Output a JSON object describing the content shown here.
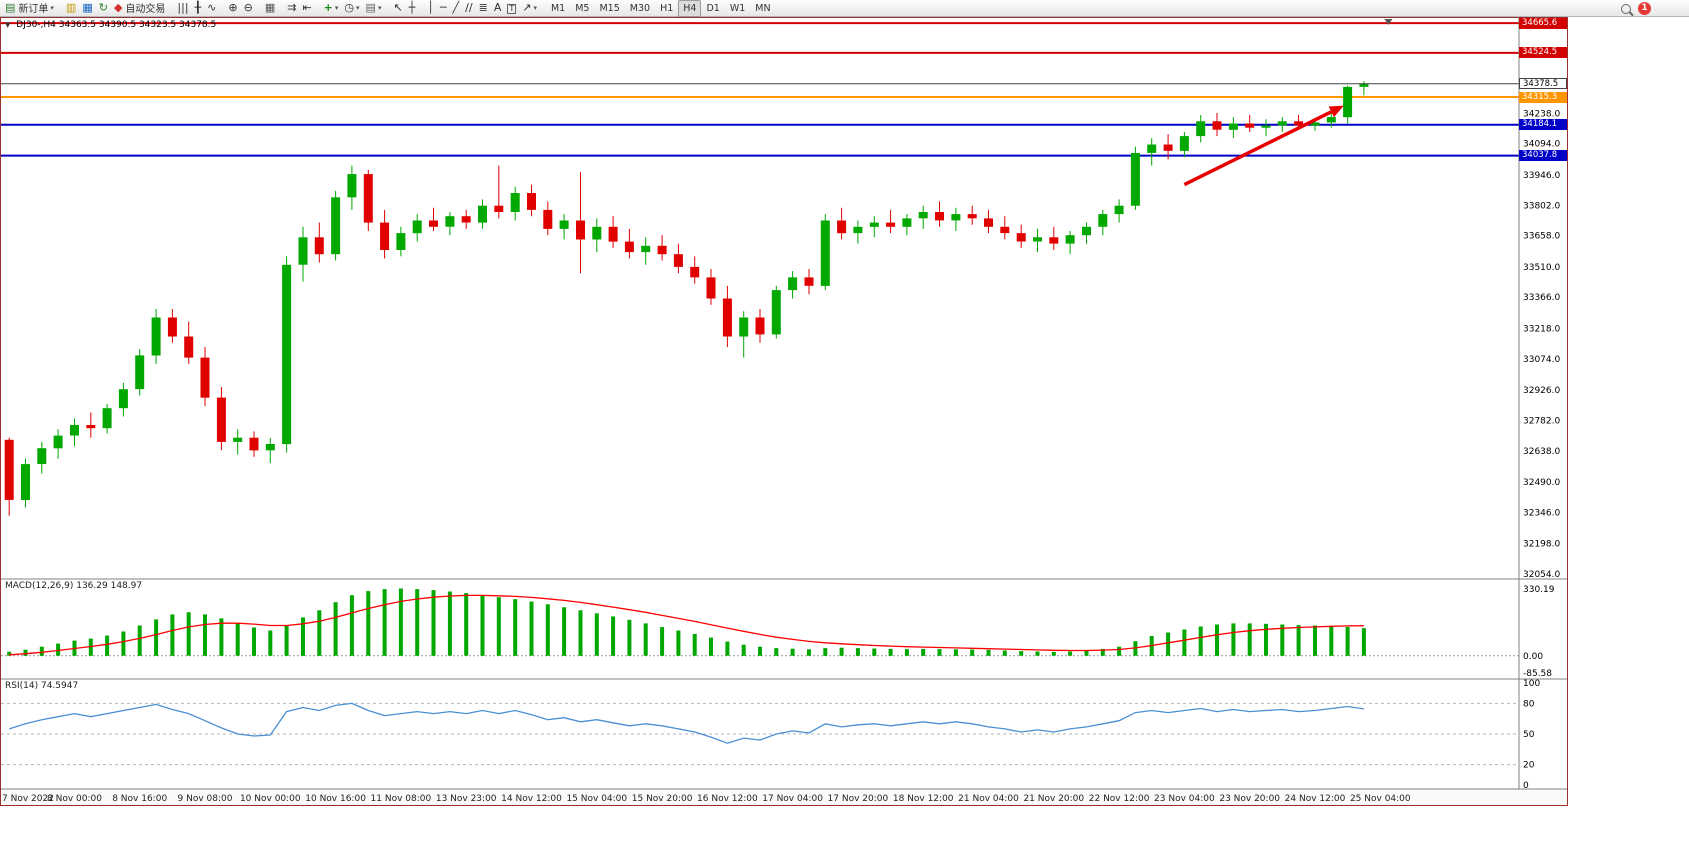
{
  "window": {
    "badge_count": "1"
  },
  "toolbar": {
    "items": [
      {
        "kind": "labeled",
        "name": "new-order-button",
        "icon_name": "new-order-icon",
        "icon": "▤",
        "icon_color": "#2e7d32",
        "label": "新订单",
        "dropdown": true
      },
      {
        "kind": "sep"
      },
      {
        "name": "market-watch-icon",
        "kind": "icon",
        "icon": "▥",
        "icon_color": "#c59a00"
      },
      {
        "name": "data-window-icon",
        "kind": "icon",
        "icon": "▦",
        "icon_color": "#1565c0"
      },
      {
        "name": "refresh-icon",
        "kind": "icon",
        "icon": "↻",
        "icon_color": "#2e7d32"
      },
      {
        "kind": "labeled",
        "name": "autotrading-button",
        "icon_name": "autotrading-icon",
        "icon": "◆",
        "icon_color": "#d32f2f",
        "label": "自动交易"
      },
      {
        "kind": "sep"
      },
      {
        "name": "bar-chart-icon",
        "kind": "icon",
        "icon": "|||",
        "icon_color": "#333"
      },
      {
        "name": "candlestick-chart-icon",
        "kind": "icon",
        "icon": "╂",
        "icon_color": "#333"
      },
      {
        "name": "line-chart-icon",
        "kind": "icon",
        "icon": "∿",
        "icon_color": "#333"
      },
      {
        "kind": "sep"
      },
      {
        "name": "zoom-in-icon",
        "kind": "icon",
        "icon": "⊕",
        "icon_color": "#333"
      },
      {
        "name": "zoom-out-icon",
        "kind": "icon",
        "icon": "⊖",
        "icon_color": "#333"
      },
      {
        "kind": "sep"
      },
      {
        "name": "tile-windows-icon",
        "kind": "icon",
        "icon": "▦",
        "icon_color": "#555"
      },
      {
        "kind": "sep"
      },
      {
        "name": "auto-scroll-icon",
        "kind": "icon",
        "icon": "⇉",
        "icon_color": "#333"
      },
      {
        "name": "chart-shift-icon",
        "kind": "icon",
        "icon": "⇤",
        "icon_color": "#333"
      },
      {
        "kind": "sep"
      },
      {
        "name": "indicators-icon",
        "kind": "icon",
        "icon": "+",
        "icon_color": "#1b8a1b",
        "bold": true,
        "dropdown": true
      },
      {
        "name": "periods-icon",
        "kind": "icon",
        "icon": "◷",
        "icon_color": "#333",
        "dropdown": true
      },
      {
        "name": "templates-icon",
        "kind": "icon",
        "icon": "▤",
        "icon_color": "#666",
        "dropdown": true
      },
      {
        "kind": "sep"
      },
      {
        "name": "cursor-icon",
        "kind": "icon",
        "icon": "↖",
        "icon_color": "#333"
      },
      {
        "name": "crosshair-icon",
        "kind": "icon",
        "icon": "┼",
        "icon_color": "#333"
      },
      {
        "kind": "sep"
      },
      {
        "name": "vertical-line-icon",
        "kind": "icon",
        "icon": "│",
        "icon_color": "#333"
      },
      {
        "name": "horizontal-line-icon",
        "kind": "icon",
        "icon": "─",
        "icon_color": "#333"
      },
      {
        "name": "trendline-icon",
        "kind": "icon",
        "icon": "╱",
        "icon_color": "#333"
      },
      {
        "name": "channel-icon",
        "kind": "icon",
        "icon": "∕∕",
        "icon_color": "#333"
      },
      {
        "name": "fibonacci-icon",
        "kind": "icon",
        "icon": "≣",
        "icon_color": "#333"
      },
      {
        "name": "text-icon",
        "kind": "icon",
        "icon": "A",
        "icon_color": "#333"
      },
      {
        "name": "text-label-icon",
        "kind": "icon",
        "icon": "T",
        "icon_color": "#333",
        "boxed": true
      },
      {
        "name": "arrows-icon",
        "kind": "icon",
        "icon": "↗",
        "icon_color": "#333",
        "dropdown": true
      },
      {
        "kind": "sep"
      }
    ],
    "timeframes": [
      "M1",
      "M5",
      "M15",
      "M30",
      "H1",
      "H4",
      "D1",
      "W1",
      "MN"
    ],
    "active_timeframe": "H4"
  },
  "chart": {
    "title_symbol": "DJ30-,H4",
    "title_ohlc": "34363.5 34390.5 34323.5 34378.5"
  },
  "theme": {
    "bull": "#00A800",
    "bear": "#E00000",
    "macd_hist": "#00A800",
    "macd_signal": "#FF0000",
    "rsi_line": "#4a8fd4",
    "hline_red": "#D20000",
    "hline_orange": "#FF9500",
    "hline_blue": "#0000C8",
    "bid_line": "#444444",
    "arrow": "#E80000"
  },
  "chart_data": {
    "type": "candlestick",
    "symbol": "DJ30-",
    "period": "H4",
    "current": {
      "open": 34363.5,
      "high": 34390.5,
      "low": 34323.5,
      "close": 34378.5
    },
    "y_range": {
      "top": 34690,
      "bottom": 32030
    },
    "price_axis": [
      "34238.0",
      "34094.0",
      "33946.0",
      "33802.0",
      "33658.0",
      "33510.0",
      "33366.0",
      "33218.0",
      "33074.0",
      "32926.0",
      "32782.0",
      "32638.0",
      "32490.0",
      "32346.0",
      "32198.0",
      "32054.0"
    ],
    "time_labels": [
      "7 Nov 2022",
      "8 Nov 00:00",
      "8 Nov 16:00",
      "9 Nov 08:00",
      "10 Nov 00:00",
      "10 Nov 16:00",
      "11 Nov 08:00",
      "13 Nov 23:00",
      "14 Nov 12:00",
      "15 Nov 04:00",
      "15 Nov 20:00",
      "16 Nov 12:00",
      "17 Nov 04:00",
      "17 Nov 20:00",
      "18 Nov 12:00",
      "21 Nov 04:00",
      "21 Nov 20:00",
      "22 Nov 12:00",
      "23 Nov 04:00",
      "23 Nov 20:00",
      "24 Nov 12:00",
      "25 Nov 04:00"
    ],
    "label_every_n_candles": 4,
    "total_slots": 93,
    "hlines": [
      {
        "value": 34665.6,
        "label": "34665.6",
        "color_key": "hline_red",
        "width": 2
      },
      {
        "value": 34524.5,
        "label": "34524.5",
        "color_key": "hline_red",
        "width": 2
      },
      {
        "value": 34315.3,
        "label": "34315.3",
        "color_key": "hline_orange",
        "width": 2
      },
      {
        "value": 34184.1,
        "label": "34184.1",
        "color_key": "hline_blue",
        "width": 2
      },
      {
        "value": 34037.8,
        "label": "34037.8",
        "color_key": "hline_blue",
        "width": 2
      }
    ],
    "bid_line": {
      "value": 34378.5,
      "label": "34378.5"
    },
    "annotation_arrow": {
      "x1_slot": 72,
      "y1_price": 33900,
      "x2_slot": 81,
      "y2_price": 34245
    },
    "candles": [
      [
        32690,
        32700,
        32330,
        32405
      ],
      [
        32405,
        32600,
        32370,
        32575
      ],
      [
        32575,
        32680,
        32530,
        32650
      ],
      [
        32650,
        32740,
        32600,
        32710
      ],
      [
        32710,
        32790,
        32660,
        32760
      ],
      [
        32760,
        32820,
        32700,
        32745
      ],
      [
        32745,
        32860,
        32720,
        32840
      ],
      [
        32840,
        32960,
        32800,
        32930
      ],
      [
        32930,
        33120,
        32900,
        33090
      ],
      [
        33090,
        33310,
        33050,
        33270
      ],
      [
        33270,
        33310,
        33150,
        33180
      ],
      [
        33180,
        33250,
        33050,
        33080
      ],
      [
        33080,
        33130,
        32850,
        32890
      ],
      [
        32890,
        32940,
        32640,
        32680
      ],
      [
        32680,
        32740,
        32620,
        32700
      ],
      [
        32700,
        32730,
        32610,
        32640
      ],
      [
        32640,
        32700,
        32580,
        32670
      ],
      [
        32670,
        33560,
        32630,
        33520
      ],
      [
        33520,
        33700,
        33440,
        33650
      ],
      [
        33650,
        33720,
        33530,
        33570
      ],
      [
        33570,
        33870,
        33540,
        33840
      ],
      [
        33840,
        33990,
        33780,
        33950
      ],
      [
        33950,
        33970,
        33680,
        33720
      ],
      [
        33720,
        33780,
        33550,
        33590
      ],
      [
        33590,
        33700,
        33560,
        33670
      ],
      [
        33670,
        33760,
        33630,
        33730
      ],
      [
        33730,
        33790,
        33680,
        33700
      ],
      [
        33700,
        33770,
        33660,
        33750
      ],
      [
        33750,
        33780,
        33690,
        33720
      ],
      [
        33720,
        33830,
        33690,
        33800
      ],
      [
        33800,
        33990,
        33740,
        33770
      ],
      [
        33770,
        33890,
        33730,
        33860
      ],
      [
        33860,
        33900,
        33750,
        33780
      ],
      [
        33780,
        33820,
        33660,
        33690
      ],
      [
        33690,
        33760,
        33640,
        33730
      ],
      [
        33730,
        33960,
        33480,
        33640
      ],
      [
        33640,
        33740,
        33580,
        33700
      ],
      [
        33700,
        33750,
        33600,
        33630
      ],
      [
        33630,
        33690,
        33550,
        33580
      ],
      [
        33580,
        33650,
        33520,
        33610
      ],
      [
        33610,
        33660,
        33540,
        33570
      ],
      [
        33570,
        33620,
        33480,
        33510
      ],
      [
        33510,
        33560,
        33430,
        33460
      ],
      [
        33460,
        33500,
        33330,
        33360
      ],
      [
        33360,
        33420,
        33130,
        33180
      ],
      [
        33180,
        33300,
        33080,
        33270
      ],
      [
        33270,
        33310,
        33150,
        33190
      ],
      [
        33190,
        33420,
        33170,
        33400
      ],
      [
        33400,
        33490,
        33360,
        33460
      ],
      [
        33460,
        33500,
        33380,
        33420
      ],
      [
        33420,
        33760,
        33400,
        33730
      ],
      [
        33730,
        33790,
        33640,
        33670
      ],
      [
        33670,
        33730,
        33620,
        33700
      ],
      [
        33700,
        33750,
        33650,
        33720
      ],
      [
        33720,
        33780,
        33670,
        33700
      ],
      [
        33700,
        33760,
        33660,
        33740
      ],
      [
        33740,
        33800,
        33690,
        33770
      ],
      [
        33770,
        33820,
        33700,
        33730
      ],
      [
        33730,
        33790,
        33680,
        33760
      ],
      [
        33760,
        33800,
        33710,
        33740
      ],
      [
        33740,
        33780,
        33670,
        33700
      ],
      [
        33700,
        33750,
        33640,
        33670
      ],
      [
        33670,
        33710,
        33600,
        33630
      ],
      [
        33630,
        33690,
        33580,
        33650
      ],
      [
        33650,
        33700,
        33590,
        33620
      ],
      [
        33620,
        33680,
        33570,
        33660
      ],
      [
        33660,
        33720,
        33620,
        33700
      ],
      [
        33700,
        33780,
        33660,
        33760
      ],
      [
        33760,
        33830,
        33720,
        33800
      ],
      [
        33800,
        34080,
        33780,
        34050
      ],
      [
        34050,
        34120,
        33990,
        34090
      ],
      [
        34090,
        34140,
        34020,
        34060
      ],
      [
        34060,
        34150,
        34030,
        34130
      ],
      [
        34130,
        34230,
        34100,
        34200
      ],
      [
        34200,
        34240,
        34130,
        34160
      ],
      [
        34160,
        34220,
        34120,
        34190
      ],
      [
        34190,
        34230,
        34150,
        34170
      ],
      [
        34170,
        34210,
        34130,
        34180
      ],
      [
        34180,
        34220,
        34150,
        34200
      ],
      [
        34200,
        34230,
        34160,
        34180
      ],
      [
        34180,
        34215,
        34155,
        34195
      ],
      [
        34195,
        34240,
        34170,
        34220
      ],
      [
        34220,
        34370,
        34190,
        34363.5
      ],
      [
        34363.5,
        34390.5,
        34323.5,
        34378.5
      ]
    ],
    "macd": {
      "label": "MACD(12,26,9)",
      "values_text": "136.29 148.97",
      "axis": [
        "330.19",
        "0.00",
        "-85.58"
      ],
      "range": {
        "top": 380,
        "bottom": -115
      },
      "histogram": [
        20,
        30,
        45,
        60,
        75,
        85,
        100,
        120,
        150,
        180,
        205,
        215,
        205,
        185,
        160,
        140,
        125,
        150,
        190,
        225,
        265,
        300,
        320,
        330,
        333,
        330,
        325,
        318,
        310,
        300,
        290,
        280,
        268,
        255,
        240,
        225,
        210,
        195,
        178,
        160,
        142,
        125,
        108,
        90,
        70,
        55,
        45,
        38,
        35,
        32,
        38,
        40,
        38,
        36,
        34,
        33,
        34,
        33,
        32,
        31,
        29,
        26,
        23,
        21,
        19,
        21,
        26,
        34,
        45,
        72,
        98,
        115,
        130,
        145,
        155,
        160,
        160,
        158,
        155,
        152,
        150,
        147,
        143,
        136.29
      ],
      "signal": [
        5,
        10,
        17,
        26,
        36,
        46,
        57,
        70,
        86,
        105,
        125,
        143,
        155,
        161,
        161,
        157,
        150,
        150,
        158,
        171,
        190,
        212,
        234,
        253,
        269,
        281,
        290,
        296,
        299,
        299,
        297,
        294,
        289,
        282,
        274,
        264,
        253,
        241,
        228,
        215,
        200,
        185,
        170,
        154,
        137,
        121,
        106,
        92,
        81,
        71,
        64,
        59,
        55,
        51,
        48,
        45,
        43,
        41,
        39,
        37,
        35,
        33,
        31,
        29,
        27,
        26,
        26,
        28,
        31,
        39,
        51,
        64,
        77,
        91,
        104,
        115,
        124,
        131,
        136,
        140,
        143,
        146,
        148,
        148.97
      ]
    },
    "rsi": {
      "label": "RSI(14)",
      "value_text": "74.5947",
      "axis": [
        "100",
        "80",
        "50",
        "20",
        "0"
      ],
      "levels": [
        80,
        50,
        20
      ],
      "range": {
        "top": 100,
        "bottom": 0
      },
      "values": [
        55,
        60,
        64,
        67,
        70,
        67,
        70,
        73,
        76,
        79,
        74,
        70,
        63,
        56,
        50,
        48,
        49,
        72,
        76,
        73,
        78,
        80,
        73,
        68,
        70,
        72,
        70,
        72,
        70,
        73,
        70,
        73,
        69,
        64,
        66,
        62,
        64,
        61,
        58,
        60,
        58,
        55,
        52,
        47,
        41,
        46,
        44,
        50,
        53,
        51,
        60,
        57,
        59,
        60,
        58,
        60,
        62,
        60,
        62,
        60,
        57,
        55,
        52,
        54,
        52,
        55,
        57,
        60,
        63,
        71,
        73,
        71,
        73,
        75,
        72,
        74,
        72,
        73,
        74,
        72,
        73,
        75,
        77,
        74.59
      ]
    }
  }
}
